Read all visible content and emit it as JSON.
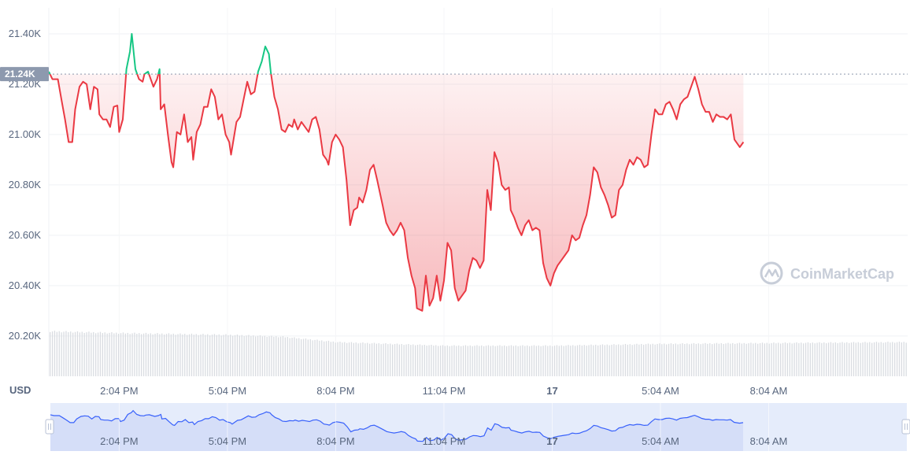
{
  "chart_data": {
    "type": "line",
    "currency": "USD",
    "current_price_label": "21.24K",
    "current_price": 21240,
    "ylim": [
      20040,
      21500
    ],
    "y_ticks": [
      {
        "label": "21.40K",
        "value": 21400
      },
      {
        "label": "21.20K",
        "value": 21200
      },
      {
        "label": "21.00K",
        "value": 21000
      },
      {
        "label": "20.80K",
        "value": 20800
      },
      {
        "label": "20.60K",
        "value": 20600
      },
      {
        "label": "20.40K",
        "value": 20400
      },
      {
        "label": "20.20K",
        "value": 20200
      }
    ],
    "x_ticks": [
      {
        "label": "2:04 PM",
        "t": 3
      },
      {
        "label": "5:04 PM",
        "t": 6
      },
      {
        "label": "8:04 PM",
        "t": 9
      },
      {
        "label": "11:04 PM",
        "t": 12
      },
      {
        "label": "17",
        "t": 15,
        "bold": true
      },
      {
        "label": "5:04 AM",
        "t": 18
      },
      {
        "label": "8:04 AM",
        "t": 21
      }
    ],
    "xlim": [
      1.05,
      24.85
    ],
    "series": [
      {
        "points": [
          [
            1.05,
            21250
          ],
          [
            1.15,
            21220
          ],
          [
            1.3,
            21220
          ],
          [
            1.4,
            21140
          ],
          [
            1.5,
            21060
          ],
          [
            1.6,
            20970
          ],
          [
            1.7,
            20970
          ],
          [
            1.78,
            21100
          ],
          [
            1.9,
            21190
          ],
          [
            2.0,
            21210
          ],
          [
            2.1,
            21200
          ],
          [
            2.2,
            21100
          ],
          [
            2.3,
            21190
          ],
          [
            2.4,
            21180
          ],
          [
            2.45,
            21080
          ],
          [
            2.55,
            21060
          ],
          [
            2.65,
            21060
          ],
          [
            2.75,
            21030
          ],
          [
            2.85,
            21110
          ],
          [
            2.95,
            21115
          ],
          [
            3.0,
            21010
          ],
          [
            3.1,
            21060
          ],
          [
            3.2,
            21260
          ],
          [
            3.3,
            21330
          ],
          [
            3.35,
            21400
          ],
          [
            3.45,
            21260
          ],
          [
            3.55,
            21220
          ],
          [
            3.65,
            21210
          ],
          [
            3.7,
            21240
          ],
          [
            3.8,
            21250
          ],
          [
            3.95,
            21190
          ],
          [
            4.05,
            21220
          ],
          [
            4.12,
            21260
          ],
          [
            4.15,
            21100
          ],
          [
            4.25,
            21120
          ],
          [
            4.35,
            21000
          ],
          [
            4.45,
            20890
          ],
          [
            4.5,
            20870
          ],
          [
            4.6,
            21010
          ],
          [
            4.7,
            21000
          ],
          [
            4.8,
            21080
          ],
          [
            4.9,
            20970
          ],
          [
            5.0,
            20990
          ],
          [
            5.05,
            20900
          ],
          [
            5.15,
            21010
          ],
          [
            5.25,
            21040
          ],
          [
            5.35,
            21110
          ],
          [
            5.45,
            21110
          ],
          [
            5.55,
            21180
          ],
          [
            5.65,
            21150
          ],
          [
            5.75,
            21060
          ],
          [
            5.85,
            21080
          ],
          [
            5.95,
            21000
          ],
          [
            6.05,
            20970
          ],
          [
            6.1,
            20920
          ],
          [
            6.25,
            21050
          ],
          [
            6.35,
            21070
          ],
          [
            6.45,
            21140
          ],
          [
            6.55,
            21210
          ],
          [
            6.65,
            21160
          ],
          [
            6.75,
            21170
          ],
          [
            6.85,
            21250
          ],
          [
            6.95,
            21290
          ],
          [
            7.05,
            21350
          ],
          [
            7.15,
            21320
          ],
          [
            7.2,
            21250
          ],
          [
            7.3,
            21150
          ],
          [
            7.4,
            21100
          ],
          [
            7.5,
            21020
          ],
          [
            7.6,
            21010
          ],
          [
            7.7,
            21040
          ],
          [
            7.8,
            21030
          ],
          [
            7.85,
            21060
          ],
          [
            7.95,
            21020
          ],
          [
            8.05,
            21050
          ],
          [
            8.15,
            21030
          ],
          [
            8.25,
            21010
          ],
          [
            8.35,
            21060
          ],
          [
            8.45,
            21070
          ],
          [
            8.55,
            21020
          ],
          [
            8.65,
            20920
          ],
          [
            8.75,
            20900
          ],
          [
            8.8,
            20880
          ],
          [
            8.9,
            20970
          ],
          [
            9.0,
            21000
          ],
          [
            9.1,
            20980
          ],
          [
            9.2,
            20950
          ],
          [
            9.3,
            20820
          ],
          [
            9.4,
            20640
          ],
          [
            9.5,
            20700
          ],
          [
            9.6,
            20710
          ],
          [
            9.65,
            20750
          ],
          [
            9.75,
            20730
          ],
          [
            9.85,
            20780
          ],
          [
            9.95,
            20860
          ],
          [
            10.05,
            20880
          ],
          [
            10.15,
            20820
          ],
          [
            10.3,
            20720
          ],
          [
            10.4,
            20650
          ],
          [
            10.5,
            20620
          ],
          [
            10.6,
            20600
          ],
          [
            10.7,
            20620
          ],
          [
            10.8,
            20650
          ],
          [
            10.9,
            20620
          ],
          [
            11.0,
            20510
          ],
          [
            11.1,
            20440
          ],
          [
            11.2,
            20390
          ],
          [
            11.25,
            20310
          ],
          [
            11.4,
            20300
          ],
          [
            11.5,
            20440
          ],
          [
            11.6,
            20320
          ],
          [
            11.7,
            20350
          ],
          [
            11.8,
            20440
          ],
          [
            11.9,
            20340
          ],
          [
            12.0,
            20420
          ],
          [
            12.1,
            20570
          ],
          [
            12.2,
            20540
          ],
          [
            12.3,
            20390
          ],
          [
            12.4,
            20340
          ],
          [
            12.5,
            20360
          ],
          [
            12.6,
            20380
          ],
          [
            12.7,
            20460
          ],
          [
            12.8,
            20510
          ],
          [
            12.9,
            20500
          ],
          [
            13.0,
            20470
          ],
          [
            13.1,
            20500
          ],
          [
            13.2,
            20780
          ],
          [
            13.3,
            20700
          ],
          [
            13.4,
            20930
          ],
          [
            13.5,
            20890
          ],
          [
            13.6,
            20800
          ],
          [
            13.7,
            20780
          ],
          [
            13.8,
            20790
          ],
          [
            13.85,
            20700
          ],
          [
            13.95,
            20670
          ],
          [
            14.05,
            20630
          ],
          [
            14.15,
            20600
          ],
          [
            14.25,
            20640
          ],
          [
            14.35,
            20660
          ],
          [
            14.45,
            20620
          ],
          [
            14.55,
            20630
          ],
          [
            14.65,
            20620
          ],
          [
            14.75,
            20490
          ],
          [
            14.85,
            20430
          ],
          [
            14.95,
            20400
          ],
          [
            15.05,
            20450
          ],
          [
            15.15,
            20480
          ],
          [
            15.25,
            20500
          ],
          [
            15.35,
            20520
          ],
          [
            15.45,
            20540
          ],
          [
            15.55,
            20600
          ],
          [
            15.65,
            20580
          ],
          [
            15.75,
            20590
          ],
          [
            15.85,
            20640
          ],
          [
            15.95,
            20680
          ],
          [
            16.05,
            20760
          ],
          [
            16.15,
            20870
          ],
          [
            16.25,
            20850
          ],
          [
            16.35,
            20790
          ],
          [
            16.45,
            20760
          ],
          [
            16.55,
            20720
          ],
          [
            16.65,
            20670
          ],
          [
            16.75,
            20680
          ],
          [
            16.85,
            20780
          ],
          [
            16.95,
            20800
          ],
          [
            17.05,
            20860
          ],
          [
            17.15,
            20900
          ],
          [
            17.25,
            20880
          ],
          [
            17.35,
            20910
          ],
          [
            17.45,
            20900
          ],
          [
            17.55,
            20870
          ],
          [
            17.65,
            20880
          ],
          [
            17.75,
            21000
          ],
          [
            17.85,
            21100
          ],
          [
            17.95,
            21080
          ],
          [
            18.05,
            21080
          ],
          [
            18.15,
            21120
          ],
          [
            18.25,
            21130
          ],
          [
            18.35,
            21100
          ],
          [
            18.45,
            21060
          ],
          [
            18.55,
            21120
          ],
          [
            18.65,
            21140
          ],
          [
            18.75,
            21150
          ],
          [
            18.85,
            21190
          ],
          [
            18.95,
            21230
          ],
          [
            19.05,
            21180
          ],
          [
            19.15,
            21120
          ],
          [
            19.25,
            21090
          ],
          [
            19.35,
            21090
          ],
          [
            19.45,
            21050
          ],
          [
            19.55,
            21080
          ],
          [
            19.65,
            21070
          ],
          [
            19.75,
            21070
          ],
          [
            19.85,
            21060
          ],
          [
            19.95,
            21080
          ],
          [
            20.05,
            20980
          ],
          [
            20.2,
            20950
          ],
          [
            20.3,
            20970
          ]
        ]
      }
    ],
    "color_up": "#16c784",
    "color_down": "#ea3943",
    "volume_color": "#d9dce1",
    "volume_relative": [
      [
        1.05,
        0.125
      ],
      [
        3.0,
        0.12
      ],
      [
        6.0,
        0.115
      ],
      [
        7.5,
        0.11
      ],
      [
        9.0,
        0.095
      ],
      [
        12.0,
        0.085
      ],
      [
        15.0,
        0.085
      ],
      [
        18.0,
        0.09
      ],
      [
        24.85,
        0.095
      ]
    ],
    "watermark": "CoinMarketCap",
    "nav_x_ticks": [
      {
        "label": "2:04 PM",
        "t": 3
      },
      {
        "label": "5:04 PM",
        "t": 6
      },
      {
        "label": "8:04 PM",
        "t": 9
      },
      {
        "label": "11:04 PM",
        "t": 12
      },
      {
        "label": "17",
        "t": 15,
        "bold": true
      },
      {
        "label": "5:04 AM",
        "t": 18
      },
      {
        "label": "8:04 AM",
        "t": 21
      }
    ],
    "nav_colors": {
      "fill": "#e5ecfb",
      "line": "#3861fb"
    }
  }
}
